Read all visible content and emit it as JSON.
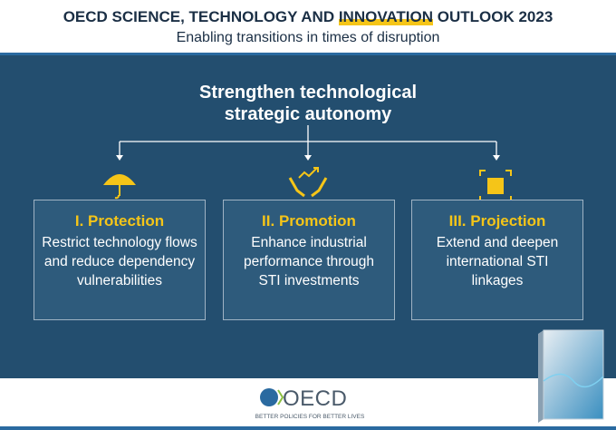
{
  "header": {
    "title_before": "OECD SCIENCE, TECHNOLOGY AND ",
    "title_highlight": "INNOVATION",
    "title_after": " OUTLOOK 2023",
    "subtitle": "Enabling transitions in times of disruption"
  },
  "main": {
    "heading_line1": "Strengthen technological",
    "heading_line2": "strategic autonomy"
  },
  "pillars": [
    {
      "title": "I. Protection",
      "text": "Restrict technology flows and reduce dependency vulnerabilities"
    },
    {
      "title": "II. Promotion",
      "text": "Enhance industrial performance through STI investments"
    },
    {
      "title": "III. Projection",
      "text": "Extend and deepen international STI linkages"
    }
  ],
  "footer": {
    "logo": "OECD",
    "tagline": "BETTER POLICIES FOR BETTER LIVES"
  }
}
